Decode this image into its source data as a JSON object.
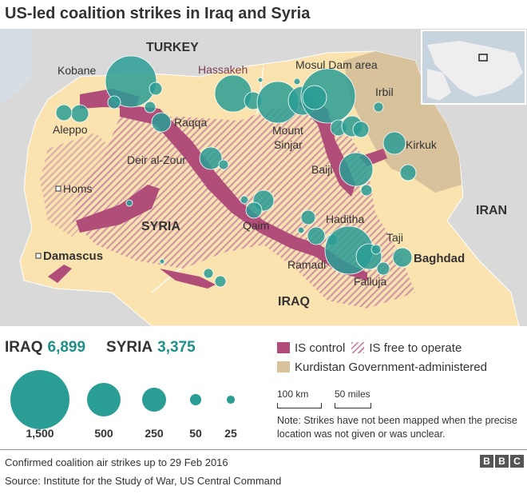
{
  "title": "US-led coalition strikes in Iraq and Syria",
  "colors": {
    "sea": "#d6dee5",
    "land_other": "#d9d9d9",
    "land_study": "#fbe3b0",
    "is_control": "#b14d79",
    "is_free": "#c98aa5",
    "kurdistan": "#d7c29c",
    "strike": "#2a9d95"
  },
  "map": {
    "countries": [
      {
        "name": "TURKEY"
      },
      {
        "name": "SYRIA"
      },
      {
        "name": "IRAQ"
      },
      {
        "name": "IRAN"
      }
    ],
    "places": [
      {
        "name": "Kobane"
      },
      {
        "name": "Hassakeh"
      },
      {
        "name": "Mosul Dam area"
      },
      {
        "name": "Irbil"
      },
      {
        "name": "Aleppo"
      },
      {
        "name": "Raqqa"
      },
      {
        "name": "Mount Sinjar"
      },
      {
        "name": "Kirkuk"
      },
      {
        "name": "Deir al-Zour"
      },
      {
        "name": "Baiji"
      },
      {
        "name": "Homs"
      },
      {
        "name": "Qaim"
      },
      {
        "name": "Haditha"
      },
      {
        "name": "Taji"
      },
      {
        "name": "Damascus"
      },
      {
        "name": "Ramadi"
      },
      {
        "name": "Baghdad"
      },
      {
        "name": "Falluja"
      }
    ],
    "mount_sinjar_line1": "Mount",
    "mount_sinjar_line2": "Sinjar"
  },
  "totals": {
    "iraq_label": "IRAQ",
    "iraq_value": "6,899",
    "syria_label": "SYRIA",
    "syria_value": "3,375"
  },
  "bubble_key": [
    {
      "label": "1,500",
      "strikes": 1500
    },
    {
      "label": "500",
      "strikes": 500
    },
    {
      "label": "250",
      "strikes": 250
    },
    {
      "label": "50",
      "strikes": 50
    },
    {
      "label": "25",
      "strikes": 25
    }
  ],
  "legend": {
    "is_control": "IS control",
    "is_free": "IS free to operate",
    "kurdistan": "Kurdistan Government-administered"
  },
  "scale": {
    "km": "100 km",
    "miles": "50 miles"
  },
  "note": "Note: Strikes have not been mapped when the precise location was not given or was unclear.",
  "footer": {
    "caption": "Confirmed coalition air strikes up to 29 Feb 2016",
    "source": "Source: Institute for the Study of War, US Central Command",
    "logo": [
      "B",
      "B",
      "C"
    ]
  }
}
